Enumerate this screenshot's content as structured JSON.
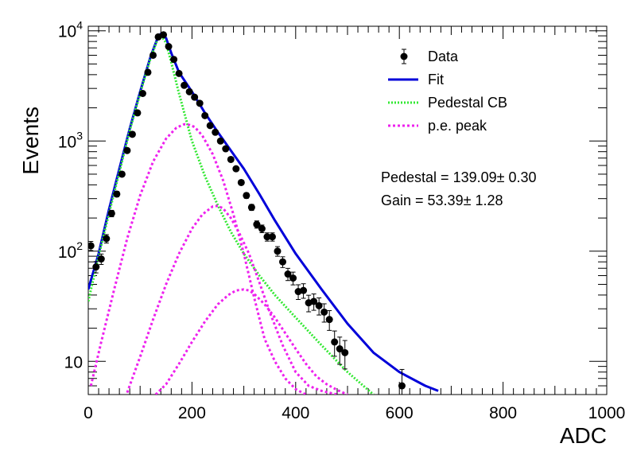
{
  "chart_data": {
    "type": "scatter",
    "xlabel": "ADC",
    "ylabel": "Events",
    "xlim": [
      0,
      1000
    ],
    "ylim": [
      5,
      11000
    ],
    "yscale": "log",
    "grid": false,
    "legend_position": "top-right",
    "x_tick_labels": [
      "0",
      "200",
      "400",
      "600",
      "800",
      "1000"
    ],
    "x_ticks": [
      0,
      200,
      400,
      600,
      800,
      1000
    ],
    "y_tick_labels": [
      {
        "value": 10,
        "label": "10"
      },
      {
        "value": 100,
        "base": "10",
        "exp": "2"
      },
      {
        "value": 1000,
        "base": "10",
        "exp": "3"
      },
      {
        "value": 10000,
        "base": "10",
        "exp": "4"
      }
    ],
    "legend": [
      {
        "label": "Data",
        "style": "marker",
        "color": "#000000"
      },
      {
        "label": "Fit",
        "style": "solid",
        "color": "#0000d9"
      },
      {
        "label": "Pedestal CB",
        "style": "dotted",
        "color": "#33e833"
      },
      {
        "label": "p.e. peak",
        "style": "dashed",
        "color": "#ee22ee"
      }
    ],
    "annotations": [
      "Pedestal = 139.09± 0.30",
      "Gain = 53.39± 1.28"
    ],
    "data": {
      "name": "Data",
      "color": "#000000",
      "x": [
        5,
        15,
        25,
        35,
        45,
        55,
        65,
        75,
        85,
        95,
        105,
        115,
        125,
        135,
        145,
        155,
        165,
        175,
        185,
        195,
        205,
        215,
        225,
        235,
        245,
        255,
        265,
        275,
        285,
        295,
        305,
        315,
        325,
        335,
        345,
        355,
        365,
        375,
        385,
        395,
        405,
        415,
        425,
        435,
        445,
        455,
        465,
        475,
        485,
        495,
        605
      ],
      "y": [
        112,
        72,
        85,
        130,
        220,
        330,
        500,
        820,
        1150,
        1800,
        2700,
        4200,
        6000,
        8800,
        9200,
        7200,
        5500,
        4100,
        3200,
        2800,
        2500,
        2200,
        1700,
        1380,
        1200,
        1000,
        850,
        680,
        560,
        420,
        320,
        250,
        175,
        160,
        135,
        135,
        100,
        80,
        62,
        57,
        43,
        44,
        34,
        35,
        32,
        28,
        24,
        15,
        13,
        12,
        6
      ]
    },
    "curves": [
      {
        "name": "Fit",
        "color": "#0000d9",
        "style": "solid",
        "x": [
          0,
          20,
          40,
          60,
          80,
          100,
          120,
          135,
          140,
          150,
          160,
          175,
          200,
          225,
          250,
          275,
          300,
          330,
          360,
          400,
          450,
          500,
          550,
          600,
          650,
          675
        ],
        "y": [
          45,
          95,
          240,
          560,
          1300,
          2800,
          5800,
          8900,
          9400,
          8600,
          6300,
          4200,
          2800,
          1800,
          1200,
          820,
          560,
          330,
          190,
          95,
          45,
          22,
          12,
          8,
          6,
          5.4
        ]
      },
      {
        "name": "Pedestal CB",
        "color": "#33e833",
        "style": "dotted",
        "x": [
          0,
          20,
          40,
          60,
          80,
          100,
          120,
          135,
          140,
          150,
          160,
          175,
          200,
          225,
          250,
          275,
          300,
          330,
          360,
          400,
          450,
          500,
          550
        ],
        "y": [
          35,
          90,
          220,
          520,
          1250,
          2700,
          5600,
          8700,
          9100,
          7800,
          5200,
          2700,
          1000,
          480,
          260,
          150,
          95,
          60,
          40,
          25,
          14,
          8,
          5
        ]
      },
      {
        "name": "p.e. peak 1",
        "color": "#ee22ee",
        "style": "dashed",
        "x": [
          5,
          25,
          50,
          75,
          100,
          125,
          150,
          170,
          185,
          195,
          205,
          220,
          240,
          260,
          280,
          300,
          320,
          340,
          360,
          380,
          400,
          420
        ],
        "y": [
          6,
          15,
          45,
          130,
          320,
          650,
          1050,
          1320,
          1420,
          1400,
          1340,
          1120,
          760,
          440,
          215,
          95,
          38,
          16,
          10,
          7,
          5.6,
          5
        ]
      },
      {
        "name": "p.e. peak 2",
        "color": "#ee22ee",
        "style": "dashed",
        "x": [
          75,
          100,
          125,
          150,
          175,
          200,
          220,
          240,
          250,
          260,
          275,
          290,
          310,
          330,
          350,
          375,
          400,
          425,
          450,
          480
        ],
        "y": [
          5.2,
          11,
          24,
          50,
          95,
          160,
          215,
          255,
          258,
          245,
          200,
          150,
          95,
          52,
          28,
          14,
          8,
          6,
          5.4,
          5
        ]
      },
      {
        "name": "p.e. peak 3",
        "color": "#ee22ee",
        "style": "dashed",
        "x": [
          130,
          150,
          175,
          200,
          225,
          250,
          270,
          285,
          300,
          310,
          320,
          340,
          360,
          380,
          400,
          420,
          440,
          460,
          480,
          500
        ],
        "y": [
          5.0,
          6.2,
          9.5,
          15,
          23,
          33,
          40,
          44,
          45,
          44,
          41,
          33,
          25,
          18,
          13,
          9.5,
          7.3,
          6.2,
          5.5,
          5.0
        ]
      }
    ]
  }
}
